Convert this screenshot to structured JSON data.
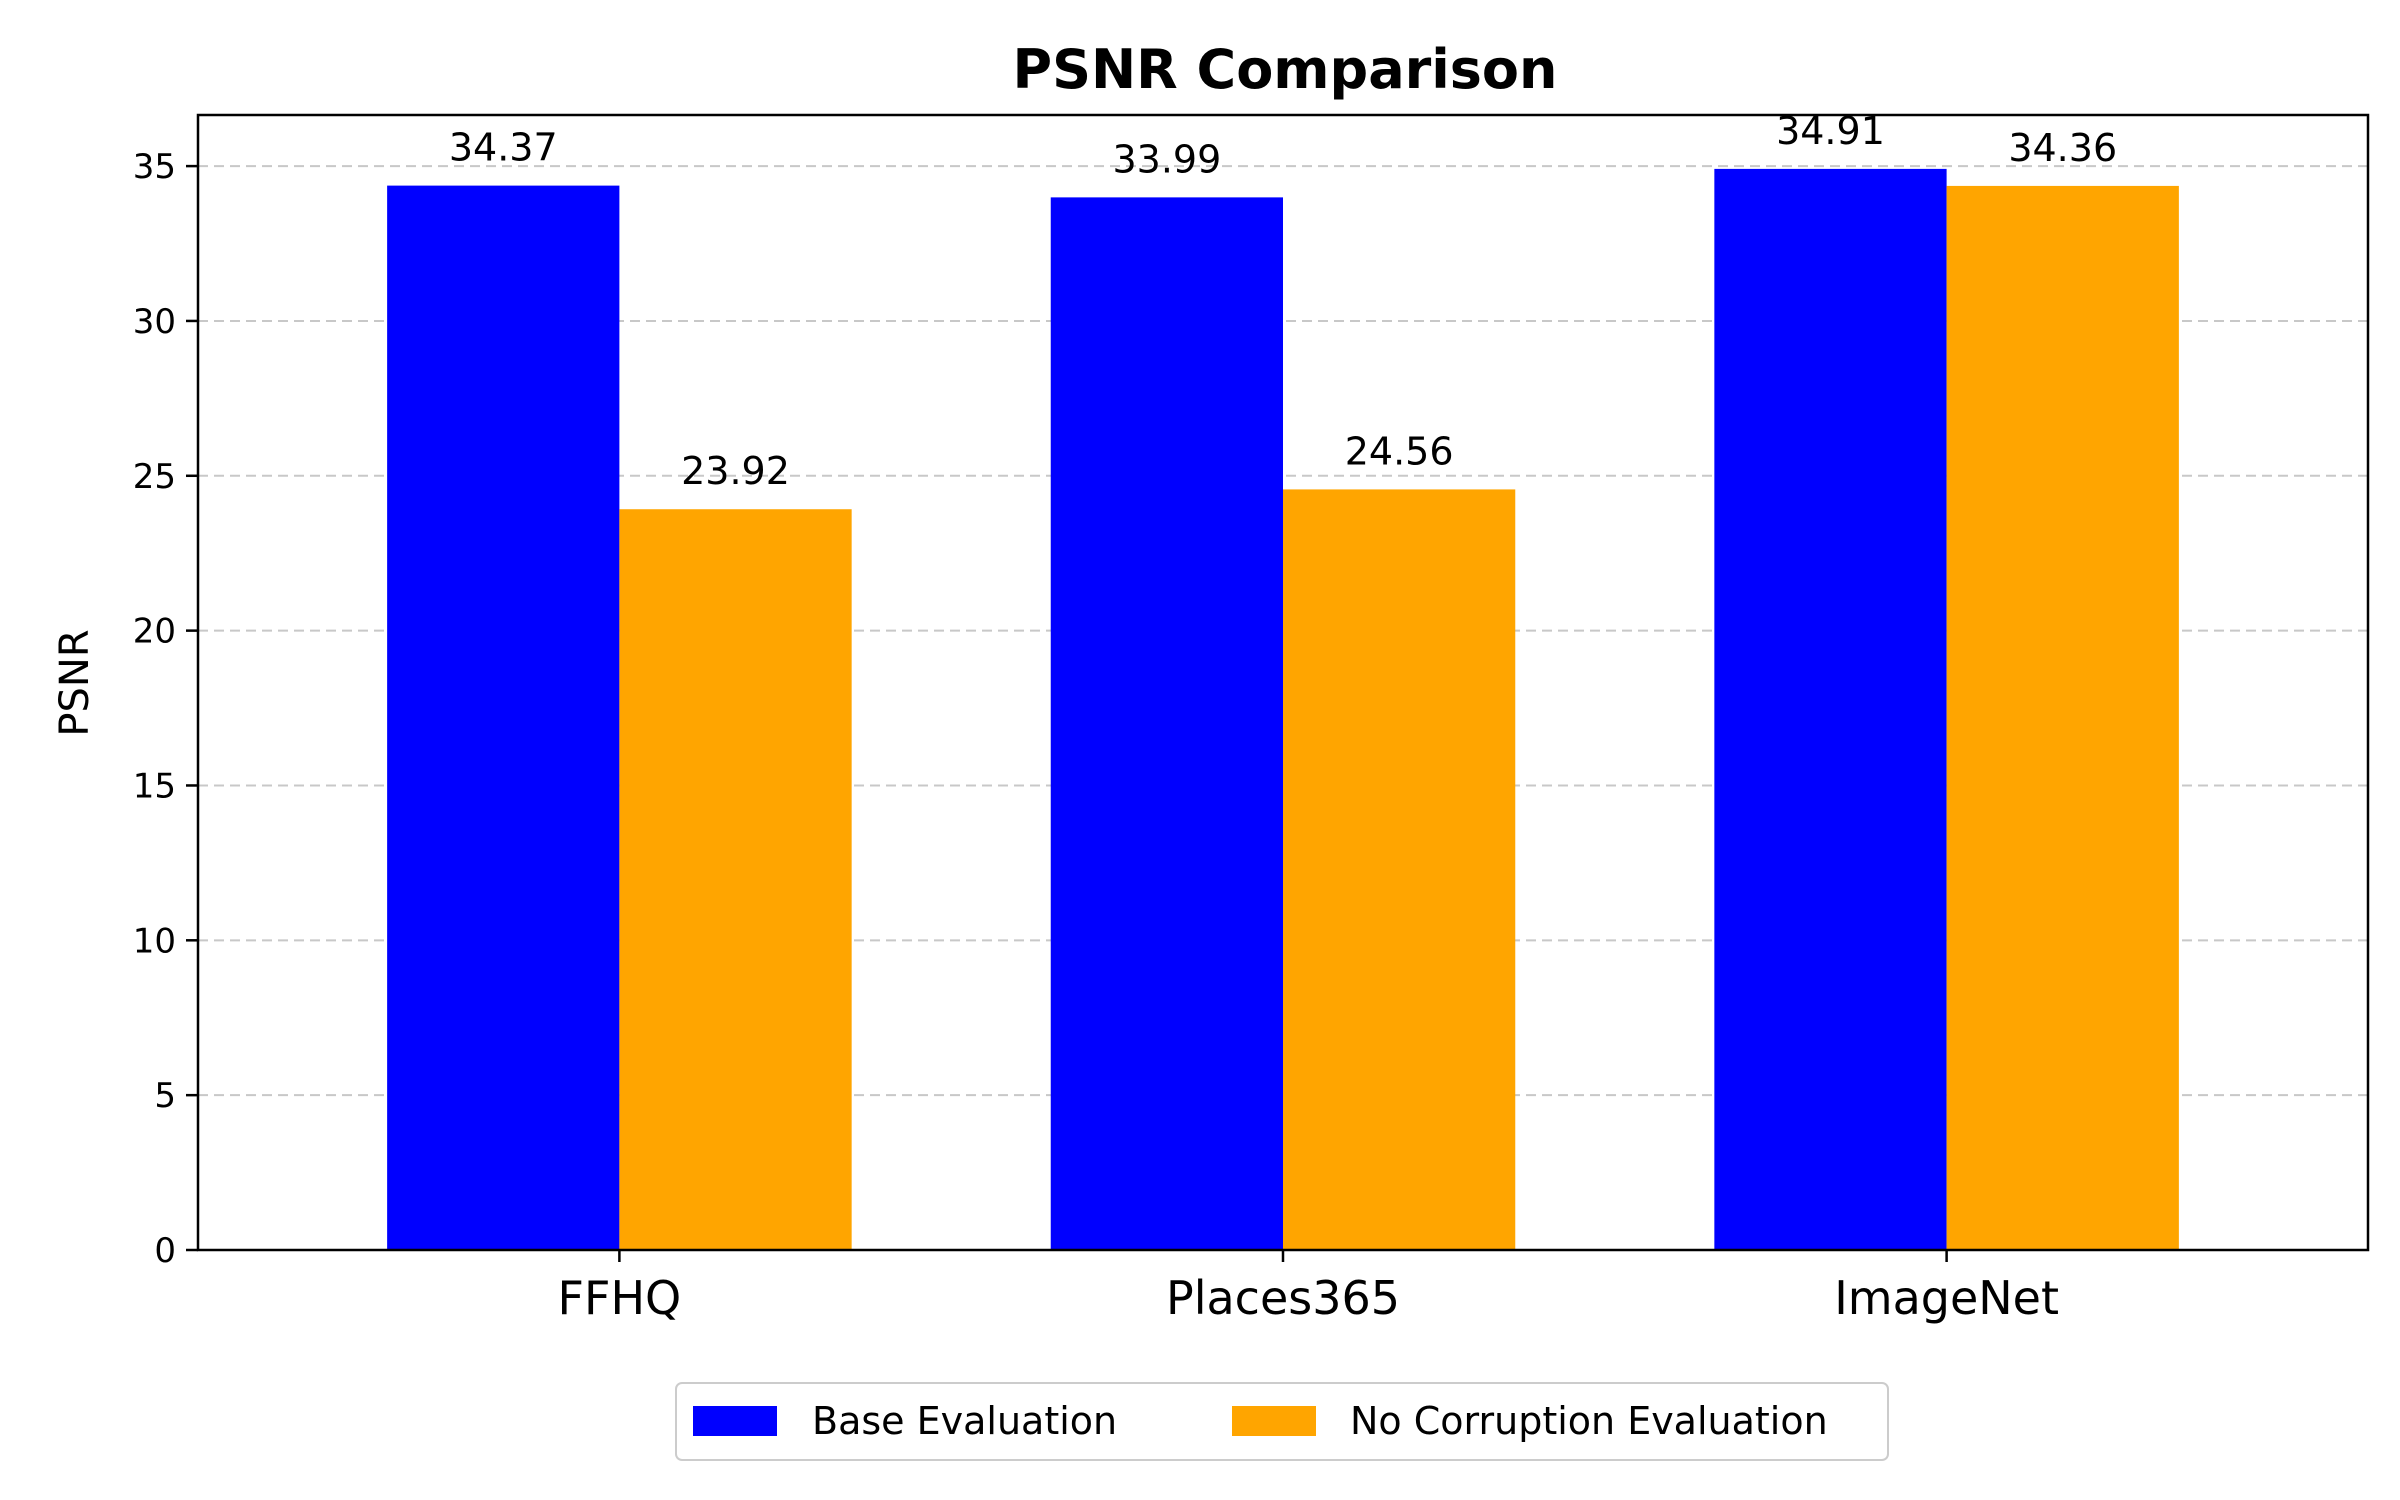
{
  "chart_data": {
    "type": "bar",
    "title": "PSNR Comparison",
    "xlabel": "",
    "ylabel": "PSNR",
    "categories": [
      "FFHQ",
      "Places365",
      "ImageNet"
    ],
    "series": [
      {
        "name": "Base Evaluation",
        "color": "#0000ff",
        "values": [
          34.37,
          33.99,
          34.91
        ]
      },
      {
        "name": "No Corruption Evaluation",
        "color": "#ffa500",
        "values": [
          23.92,
          24.56,
          34.36
        ]
      }
    ],
    "data_labels": [
      [
        "34.37",
        "33.99",
        "34.91"
      ],
      [
        "23.92",
        "24.56",
        "34.36"
      ]
    ],
    "ylim": [
      0,
      36.65
    ],
    "yticks": [
      0,
      5,
      10,
      15,
      20,
      25,
      30,
      35
    ],
    "grid": "y-dashed",
    "legend_position": "bottom-center"
  }
}
